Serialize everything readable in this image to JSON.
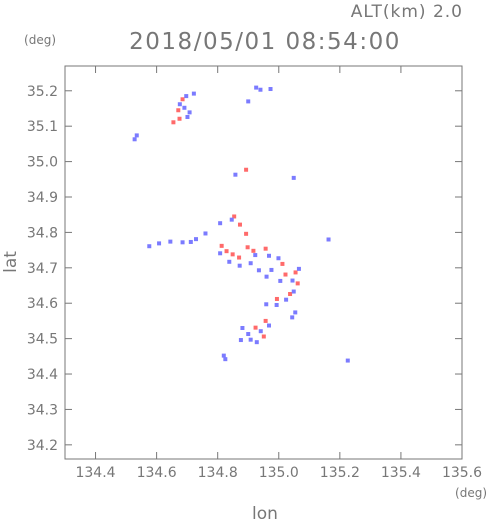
{
  "header": {
    "alt_label": "ALT(km)  2.0",
    "timestamp": "2018/05/01 08:54:00"
  },
  "chart_data": {
    "type": "scatter",
    "title": "2018/05/01 08:54:00",
    "xlabel": "lon",
    "ylabel": "lat",
    "x_unit": "(deg)",
    "y_unit": "(deg)",
    "xlim": [
      134.3,
      135.6
    ],
    "ylim": [
      34.16,
      35.27
    ],
    "x_ticks": [
      134.4,
      134.6,
      134.8,
      135.0,
      135.2,
      135.4,
      135.6
    ],
    "x_tick_labels": [
      "134.4",
      "134.6",
      "134.8",
      "135.0",
      "135.2",
      "135.4",
      "135.6"
    ],
    "y_ticks": [
      34.2,
      34.3,
      34.4,
      34.5,
      34.6,
      34.7,
      34.8,
      34.9,
      35.0,
      35.1,
      35.2
    ],
    "y_tick_labels": [
      "34.2",
      "34.3",
      "34.4",
      "34.5",
      "34.6",
      "34.7",
      "34.8",
      "34.9",
      "35.0",
      "35.1",
      "35.2"
    ],
    "grid": false,
    "colors": {
      "positive": "#ff6a6a",
      "negative": "#7b7bff",
      "axis": "#777777"
    },
    "series": [
      {
        "color": "positive",
        "points": [
          [
            134.685,
            35.176
          ],
          [
            134.671,
            35.145
          ],
          [
            134.675,
            35.121
          ],
          [
            134.655,
            35.111
          ],
          [
            134.893,
            34.977
          ],
          [
            134.854,
            34.845
          ],
          [
            134.873,
            34.822
          ],
          [
            134.893,
            34.796
          ],
          [
            134.813,
            34.762
          ],
          [
            134.829,
            34.747
          ],
          [
            134.849,
            34.738
          ],
          [
            134.87,
            34.729
          ],
          [
            134.898,
            34.758
          ],
          [
            134.917,
            34.748
          ],
          [
            134.957,
            34.754
          ],
          [
            135.012,
            34.711
          ],
          [
            135.022,
            34.681
          ],
          [
            135.055,
            34.687
          ],
          [
            135.062,
            34.656
          ],
          [
            135.037,
            34.626
          ],
          [
            134.994,
            34.612
          ],
          [
            134.951,
            34.506
          ],
          [
            134.924,
            34.531
          ],
          [
            134.957,
            34.55
          ]
        ]
      },
      {
        "color": "negative",
        "points": [
          [
            134.535,
            35.074
          ],
          [
            134.528,
            35.063
          ],
          [
            134.676,
            35.162
          ],
          [
            134.691,
            35.152
          ],
          [
            134.708,
            35.139
          ],
          [
            134.701,
            35.126
          ],
          [
            134.722,
            35.192
          ],
          [
            134.697,
            35.185
          ],
          [
            134.926,
            35.209
          ],
          [
            134.94,
            35.203
          ],
          [
            134.973,
            35.205
          ],
          [
            134.9,
            35.17
          ],
          [
            134.858,
            34.963
          ],
          [
            135.049,
            34.954
          ],
          [
            134.846,
            34.836
          ],
          [
            134.808,
            34.826
          ],
          [
            134.76,
            34.797
          ],
          [
            134.729,
            34.781
          ],
          [
            134.712,
            34.773
          ],
          [
            134.685,
            34.772
          ],
          [
            134.645,
            34.774
          ],
          [
            134.608,
            34.769
          ],
          [
            134.576,
            34.761
          ],
          [
            134.808,
            34.741
          ],
          [
            134.838,
            34.717
          ],
          [
            134.872,
            34.706
          ],
          [
            134.908,
            34.713
          ],
          [
            134.923,
            34.736
          ],
          [
            134.968,
            34.734
          ],
          [
            134.999,
            34.727
          ],
          [
            134.976,
            34.694
          ],
          [
            135.005,
            34.663
          ],
          [
            135.045,
            34.664
          ],
          [
            135.049,
            34.633
          ],
          [
            135.024,
            34.61
          ],
          [
            134.993,
            34.595
          ],
          [
            134.959,
            34.597
          ],
          [
            135.054,
            34.574
          ],
          [
            135.044,
            34.56
          ],
          [
            134.968,
            34.537
          ],
          [
            134.941,
            34.521
          ],
          [
            134.928,
            34.49
          ],
          [
            134.908,
            34.497
          ],
          [
            134.9,
            34.513
          ],
          [
            134.876,
            34.496
          ],
          [
            134.881,
            34.53
          ],
          [
            134.82,
            34.452
          ],
          [
            134.825,
            34.442
          ],
          [
            135.226,
            34.438
          ],
          [
            135.163,
            34.78
          ],
          [
            135.066,
            34.697
          ],
          [
            134.935,
            34.693
          ],
          [
            134.96,
            34.675
          ]
        ]
      }
    ]
  }
}
